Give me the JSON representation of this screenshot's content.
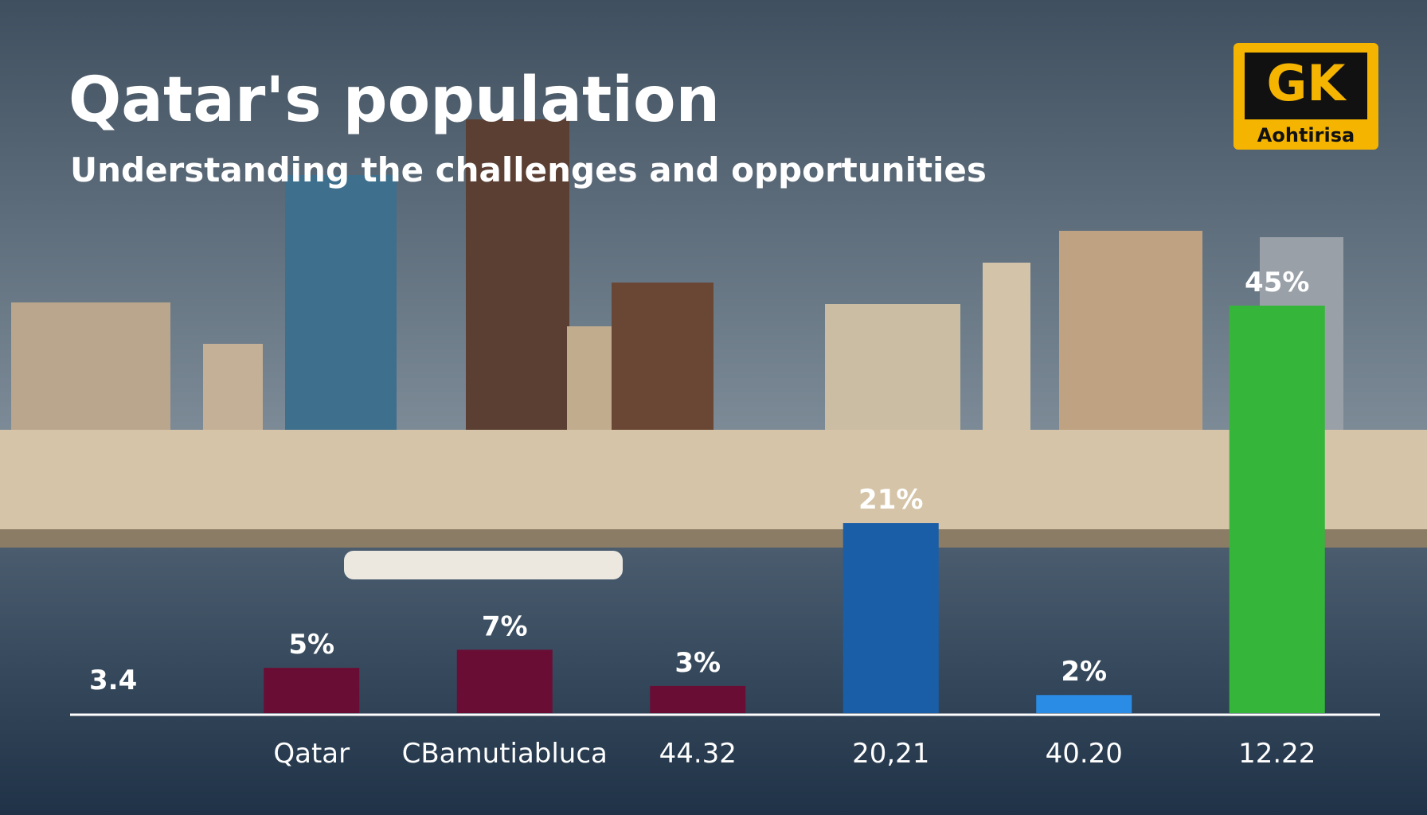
{
  "chart_data": {
    "type": "bar",
    "title": "Qatar's population",
    "subtitle": "Understanding the challenges and opportunities",
    "annotation": "3.4",
    "logo": {
      "mark": "GK",
      "caption": "Aohtirisa"
    },
    "categories": [
      "Qatar",
      "CBamutiablucа",
      "44.32",
      "20,21",
      "40.20",
      "12.22"
    ],
    "values": [
      5,
      7,
      3,
      21,
      2,
      45
    ],
    "value_labels": [
      "5%",
      "7%",
      "3%",
      "21%",
      "2%",
      "45%"
    ],
    "colors": [
      "#6a0d35",
      "#6a0d35",
      "#6a0d35",
      "#1b5ea8",
      "#2b8ce6",
      "#36b53b"
    ]
  }
}
